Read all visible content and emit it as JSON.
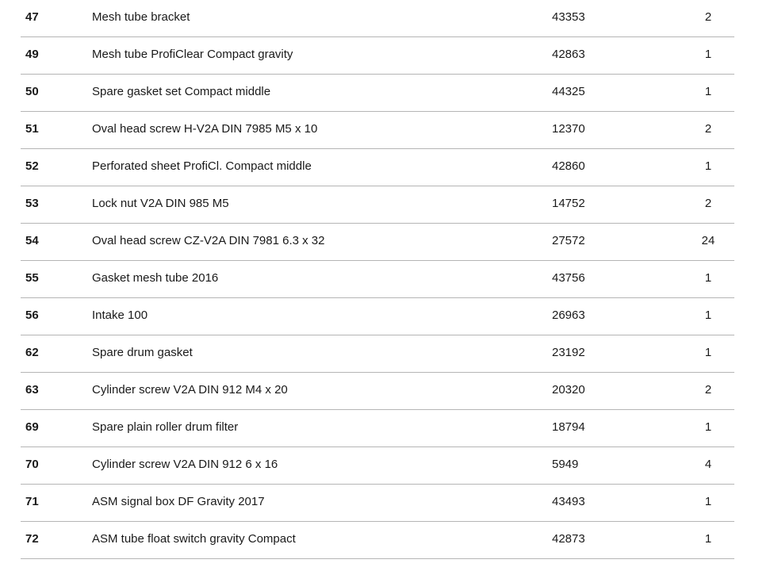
{
  "table": {
    "rows": [
      [
        "47",
        "Mesh tube bracket",
        "43353",
        "2"
      ],
      [
        "49",
        "Mesh tube ProfiClear Compact gravity",
        "42863",
        "1"
      ],
      [
        "50",
        "Spare gasket set Compact middle",
        "44325",
        "1"
      ],
      [
        "51",
        "Oval head screw H-V2A DIN 7985 M5 x 10",
        "12370",
        "2"
      ],
      [
        "52",
        "Perforated sheet ProfiCl. Compact middle",
        "42860",
        "1"
      ],
      [
        "53",
        "Lock nut V2A DIN 985 M5",
        "14752",
        "2"
      ],
      [
        "54",
        "Oval head screw CZ-V2A DIN 7981 6.3 x 32",
        "27572",
        "24"
      ],
      [
        "55",
        "Gasket mesh tube 2016",
        "43756",
        "1"
      ],
      [
        "56",
        "Intake 100",
        "26963",
        "1"
      ],
      [
        "62",
        "Spare drum gasket",
        "23192",
        "1"
      ],
      [
        "63",
        "Cylinder screw V2A DIN 912 M4 x 20",
        "20320",
        "2"
      ],
      [
        "69",
        "Spare plain roller drum filter",
        "18794",
        "1"
      ],
      [
        "70",
        "Cylinder screw V2A DIN 912 6 x 16",
        "5949",
        "4"
      ],
      [
        "71",
        "ASM signal box DF Gravity 2017",
        "43493",
        "1"
      ],
      [
        "72",
        "ASM tube float switch gravity Compact",
        "42873",
        "1"
      ]
    ]
  }
}
